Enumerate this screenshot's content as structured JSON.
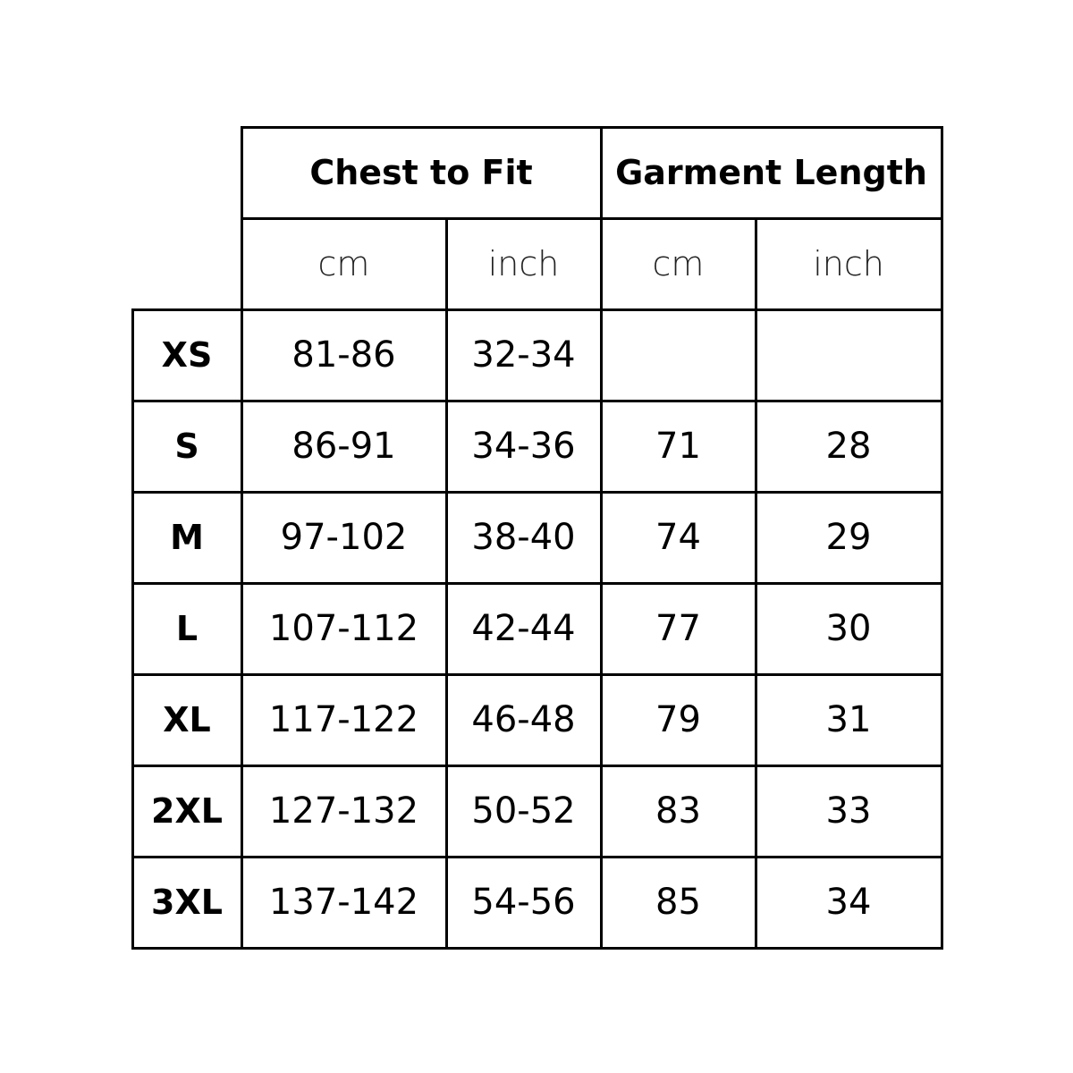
{
  "headers": {
    "chest": "Chest to Fit",
    "length": "Garment Length"
  },
  "units": [
    "cm",
    "inch",
    "cm",
    "inch"
  ],
  "rows": [
    {
      "size": "XS",
      "chest_cm": "81-86",
      "chest_in": "32-34",
      "length_cm": "",
      "length_in": ""
    },
    {
      "size": "S",
      "chest_cm": "86-91",
      "chest_in": "34-36",
      "length_cm": "71",
      "length_in": "28"
    },
    {
      "size": "M",
      "chest_cm": "97-102",
      "chest_in": "38-40",
      "length_cm": "74",
      "length_in": "29"
    },
    {
      "size": "L",
      "chest_cm": "107-112",
      "chest_in": "42-44",
      "length_cm": "77",
      "length_in": "30"
    },
    {
      "size": "XL",
      "chest_cm": "117-122",
      "chest_in": "46-48",
      "length_cm": "79",
      "length_in": "31"
    },
    {
      "size": "2XL",
      "chest_cm": "127-132",
      "chest_in": "50-52",
      "length_cm": "83",
      "length_in": "33"
    },
    {
      "size": "3XL",
      "chest_cm": "137-142",
      "chest_in": "54-56",
      "length_cm": "85",
      "length_in": "34"
    }
  ]
}
